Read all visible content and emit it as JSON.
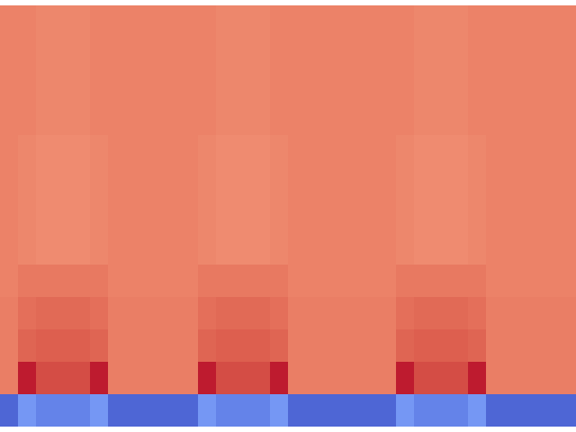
{
  "chart_data": {
    "type": "heatmap",
    "tick_labels": false,
    "zlim": [
      0,
      1
    ],
    "values": [
      [
        0.8,
        0.8,
        0.79,
        0.79,
        0.79,
        0.8,
        0.8,
        0.8,
        0.8,
        0.8,
        0.8,
        0.8,
        0.79,
        0.79,
        0.79,
        0.8,
        0.8,
        0.8,
        0.8,
        0.8,
        0.8,
        0.8,
        0.8,
        0.79,
        0.79,
        0.79,
        0.8,
        0.8,
        0.8,
        0.8,
        0.8,
        0.8
      ],
      [
        0.8,
        0.8,
        0.79,
        0.79,
        0.79,
        0.8,
        0.8,
        0.8,
        0.8,
        0.8,
        0.8,
        0.8,
        0.79,
        0.79,
        0.79,
        0.8,
        0.8,
        0.8,
        0.8,
        0.8,
        0.8,
        0.8,
        0.8,
        0.79,
        0.79,
        0.79,
        0.8,
        0.8,
        0.8,
        0.8,
        0.8,
        0.8
      ],
      [
        0.8,
        0.8,
        0.79,
        0.79,
        0.79,
        0.8,
        0.8,
        0.8,
        0.8,
        0.8,
        0.8,
        0.8,
        0.79,
        0.79,
        0.79,
        0.8,
        0.8,
        0.8,
        0.8,
        0.8,
        0.8,
        0.8,
        0.8,
        0.79,
        0.79,
        0.79,
        0.8,
        0.8,
        0.8,
        0.8,
        0.8,
        0.8
      ],
      [
        0.8,
        0.8,
        0.79,
        0.79,
        0.79,
        0.8,
        0.8,
        0.8,
        0.8,
        0.8,
        0.8,
        0.8,
        0.79,
        0.79,
        0.79,
        0.8,
        0.8,
        0.8,
        0.8,
        0.8,
        0.8,
        0.8,
        0.8,
        0.79,
        0.79,
        0.79,
        0.8,
        0.8,
        0.8,
        0.8,
        0.8,
        0.8
      ],
      [
        0.8,
        0.79,
        0.78,
        0.78,
        0.78,
        0.79,
        0.8,
        0.8,
        0.8,
        0.8,
        0.8,
        0.79,
        0.78,
        0.78,
        0.78,
        0.79,
        0.8,
        0.8,
        0.8,
        0.8,
        0.8,
        0.8,
        0.79,
        0.78,
        0.78,
        0.78,
        0.79,
        0.8,
        0.8,
        0.8,
        0.8,
        0.8
      ],
      [
        0.8,
        0.79,
        0.78,
        0.78,
        0.78,
        0.79,
        0.8,
        0.8,
        0.8,
        0.8,
        0.8,
        0.79,
        0.78,
        0.78,
        0.78,
        0.79,
        0.8,
        0.8,
        0.8,
        0.8,
        0.8,
        0.8,
        0.79,
        0.78,
        0.78,
        0.78,
        0.79,
        0.8,
        0.8,
        0.8,
        0.8,
        0.8
      ],
      [
        0.8,
        0.79,
        0.78,
        0.78,
        0.78,
        0.79,
        0.8,
        0.8,
        0.8,
        0.8,
        0.8,
        0.79,
        0.78,
        0.78,
        0.78,
        0.79,
        0.8,
        0.8,
        0.8,
        0.8,
        0.8,
        0.8,
        0.79,
        0.78,
        0.78,
        0.78,
        0.79,
        0.8,
        0.8,
        0.8,
        0.8,
        0.8
      ],
      [
        0.8,
        0.79,
        0.78,
        0.78,
        0.78,
        0.79,
        0.8,
        0.8,
        0.8,
        0.8,
        0.8,
        0.79,
        0.78,
        0.78,
        0.78,
        0.79,
        0.8,
        0.8,
        0.8,
        0.8,
        0.8,
        0.8,
        0.79,
        0.78,
        0.78,
        0.78,
        0.79,
        0.8,
        0.8,
        0.8,
        0.8,
        0.8
      ],
      [
        0.8,
        0.82,
        0.82,
        0.82,
        0.82,
        0.82,
        0.8,
        0.8,
        0.8,
        0.8,
        0.8,
        0.82,
        0.82,
        0.82,
        0.82,
        0.82,
        0.8,
        0.8,
        0.8,
        0.8,
        0.8,
        0.8,
        0.82,
        0.82,
        0.82,
        0.82,
        0.82,
        0.8,
        0.8,
        0.8,
        0.8,
        0.8
      ],
      [
        0.81,
        0.84,
        0.85,
        0.85,
        0.85,
        0.84,
        0.81,
        0.81,
        0.81,
        0.81,
        0.81,
        0.84,
        0.85,
        0.85,
        0.85,
        0.84,
        0.81,
        0.81,
        0.81,
        0.81,
        0.81,
        0.81,
        0.84,
        0.85,
        0.85,
        0.85,
        0.84,
        0.81,
        0.81,
        0.81,
        0.81,
        0.81
      ],
      [
        0.81,
        0.86,
        0.87,
        0.87,
        0.87,
        0.86,
        0.81,
        0.81,
        0.81,
        0.81,
        0.81,
        0.86,
        0.87,
        0.87,
        0.87,
        0.86,
        0.81,
        0.81,
        0.81,
        0.81,
        0.81,
        0.81,
        0.86,
        0.87,
        0.87,
        0.87,
        0.86,
        0.81,
        0.81,
        0.81,
        0.81,
        0.81
      ],
      [
        0.81,
        0.97,
        0.9,
        0.9,
        0.9,
        0.97,
        0.81,
        0.81,
        0.81,
        0.81,
        0.81,
        0.97,
        0.9,
        0.9,
        0.9,
        0.97,
        0.81,
        0.81,
        0.81,
        0.81,
        0.81,
        0.81,
        0.97,
        0.9,
        0.9,
        0.9,
        0.97,
        0.81,
        0.81,
        0.81,
        0.81,
        0.81
      ],
      [
        0.06,
        0.18,
        0.13,
        0.13,
        0.13,
        0.18,
        0.06,
        0.06,
        0.06,
        0.06,
        0.06,
        0.18,
        0.13,
        0.13,
        0.13,
        0.18,
        0.06,
        0.06,
        0.06,
        0.06,
        0.06,
        0.06,
        0.18,
        0.13,
        0.13,
        0.13,
        0.18,
        0.06,
        0.06,
        0.06,
        0.06,
        0.06
      ]
    ]
  }
}
